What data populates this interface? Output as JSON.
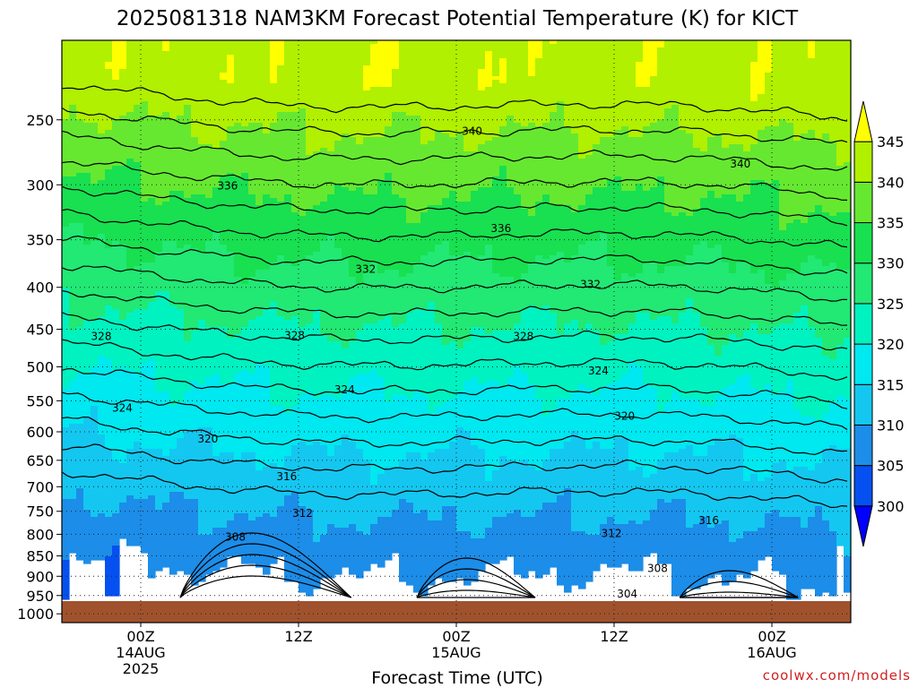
{
  "chart_data": {
    "type": "heatmap",
    "title": "2025081318 NAM3KM Forecast Potential Temperature (K) for KICT",
    "xlabel": "Forecast Time (UTC)",
    "ylabel": "",
    "x_ticks": [
      {
        "hours_from_start": 6,
        "lines": [
          "00Z",
          "14AUG",
          "2025"
        ]
      },
      {
        "hours_from_start": 18,
        "lines": [
          "12Z"
        ]
      },
      {
        "hours_from_start": 30,
        "lines": [
          "00Z",
          "15AUG"
        ]
      },
      {
        "hours_from_start": 42,
        "lines": [
          "12Z"
        ]
      },
      {
        "hours_from_start": 54,
        "lines": [
          "00Z",
          "16AUG"
        ]
      }
    ],
    "x_range_hours": [
      0,
      60
    ],
    "y_scale": "log",
    "y_ticks_hpa": [
      250,
      300,
      350,
      400,
      450,
      500,
      550,
      600,
      650,
      700,
      750,
      800,
      850,
      900,
      950,
      1000
    ],
    "y_range_hpa": [
      200,
      1025
    ],
    "surface_pressure_hpa": 965,
    "grid": true,
    "colorbar": {
      "levels": [
        300,
        305,
        310,
        315,
        320,
        325,
        330,
        335,
        340,
        345
      ],
      "colors": [
        "#0000ff",
        "#0550f0",
        "#1c8de8",
        "#14c7f0",
        "#00e8f0",
        "#00f2c0",
        "#22e874",
        "#18e050",
        "#66e830",
        "#b0f000",
        "#ffff00"
      ],
      "position": "right"
    },
    "contour_levels": [
      300,
      302,
      304,
      306,
      308,
      310,
      312,
      314,
      316,
      318,
      320,
      322,
      324,
      326,
      328,
      330,
      332,
      334,
      336,
      338,
      340,
      342
    ],
    "contour_labels": [
      {
        "value": "340",
        "hours": 31.2,
        "hpa": 258
      },
      {
        "value": "340",
        "hours": 51.6,
        "hpa": 283
      },
      {
        "value": "336",
        "hours": 12.6,
        "hpa": 301
      },
      {
        "value": "336",
        "hours": 33.4,
        "hpa": 339
      },
      {
        "value": "332",
        "hours": 23.1,
        "hpa": 380
      },
      {
        "value": "332",
        "hours": 40.2,
        "hpa": 397
      },
      {
        "value": "328",
        "hours": 3.0,
        "hpa": 459
      },
      {
        "value": "328",
        "hours": 17.7,
        "hpa": 458
      },
      {
        "value": "328",
        "hours": 35.1,
        "hpa": 459
      },
      {
        "value": "324",
        "hours": 4.6,
        "hpa": 561
      },
      {
        "value": "324",
        "hours": 21.5,
        "hpa": 533
      },
      {
        "value": "324",
        "hours": 40.8,
        "hpa": 506
      },
      {
        "value": "320",
        "hours": 11.1,
        "hpa": 612
      },
      {
        "value": "320",
        "hours": 42.8,
        "hpa": 574
      },
      {
        "value": "316",
        "hours": 17.1,
        "hpa": 680
      },
      {
        "value": "316",
        "hours": 49.2,
        "hpa": 770
      },
      {
        "value": "312",
        "hours": 18.3,
        "hpa": 754
      },
      {
        "value": "312",
        "hours": 41.8,
        "hpa": 798
      },
      {
        "value": "308",
        "hours": 13.2,
        "hpa": 806
      },
      {
        "value": "308",
        "hours": 45.3,
        "hpa": 880
      },
      {
        "value": "304",
        "hours": 43.0,
        "hpa": 946
      }
    ]
  },
  "credit": "coolwx.com/models"
}
